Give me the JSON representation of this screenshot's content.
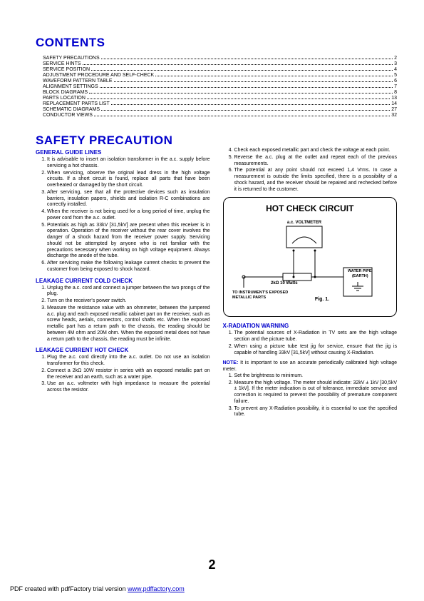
{
  "contents_heading": "CONTENTS",
  "toc": [
    {
      "label": "SAFETY PRECAUTIONS",
      "page": "2"
    },
    {
      "label": "SERVICE HINTS",
      "page": "3"
    },
    {
      "label": "SERVICE POSITION",
      "page": "4"
    },
    {
      "label": "ADJUSTMENT PROCEDURE AND SELF-CHECK",
      "page": "5"
    },
    {
      "label": "WAVEFORM PATTERN TABLE",
      "page": "6"
    },
    {
      "label": "ALIGNMENT SETTINGS",
      "page": "7"
    },
    {
      "label": "BLOCK DIAGRAMS",
      "page": "8"
    },
    {
      "label": "PARTS LOCATION",
      "page": "13"
    },
    {
      "label": "REPLACEMENT PARTS LIST",
      "page": "14"
    },
    {
      "label": "SCHEMATIC DIAGRAMS",
      "page": "27"
    },
    {
      "label": "CONDUCTOR VIEWS",
      "page": "32"
    }
  ],
  "safety_heading": "SAFETY PRECAUTION",
  "general_heading": "GENERAL GUIDE LINES",
  "general_left": [
    "It is advisable to insert an isolation transformer in the a.c. supply before servicing a hot chassis.",
    "When servicing, observe the original lead dress in the high voltage circuits. If a short circuit is found, replace all parts that have been overheated or damaged by the short circuit.",
    "After servicing, see that all the protective devices such as insulation barriers, insulation papers, shields and isolation R-C combinations are correctly installed.",
    "When the receiver is not being used for a long period of time, unplug the power cord from the a.c. outlet.",
    "Potentials as high as 33kV [31,5kV] are present when this receiver is in operation. Operation of the receiver without the rear cover involves the danger of a shock hazard from the receiver power supply. Servicing should not be attempted by anyone who is not familiar with the precautions necessary when working on high voltage equipment. Always discharge the anode of the tube.",
    "After servicing make the following leakage current checks to prevent the customer from being exposed to shock hazard."
  ],
  "cold_heading": "LEAKAGE CURRENT COLD CHECK",
  "cold_items": [
    "Unplug the a.c. cord and connect a jumper between the two prongs of the plug.",
    "Turn on the receiver's power switch.",
    "Measure the resistance value with an ohmmeter, between the jumpered a.c. plug and each exposed metallic cabinet part on the receiver, such as screw heads, aerials, connectors, control shafts etc. When the exposed metallic part has a return path to the chassis, the reading should be between 4M ohm and 20M ohm. When the exposed metal does not have a return path to the chassis, the reading must be infinite."
  ],
  "hot_heading": "LEAKAGE CURRENT HOT CHECK",
  "hot_items": [
    "Plug the a.c. cord directly into the a.c. outlet. Do not use an isolation transformer for this check.",
    "Connect a 2kΩ 10W resistor in series with an exposed metallic part on the receiver and an earth, such as a water pipe.",
    "Use an a.c. voltmeter with high impedance to measure the potential across the resistor."
  ],
  "general_right": [
    "Check each exposed metallic part and check the voltage at each point.",
    "Reverse the a.c. plug at the outlet and repeat each of the previous measurements.",
    "The potential at any point should not exceed 1,4 Vrms. In case a measurement is outside the limits specified, there is a possibility of a shock hazard, and the receiver should be repaired and rechecked before it is returned to the customer."
  ],
  "diagram": {
    "title": "HOT CHECK CIRCUIT",
    "voltmeter": "a.c. VOLTMETER",
    "resistor": "2kΩ 10 Watts",
    "earth": "WATER PIPE (EARTH)",
    "instrument": "TO INSTRUMENT'S EXPOSED METALLIC PARTS",
    "fig": "Fig. 1."
  },
  "xrad_heading": "X-RADIATION WARNING",
  "xrad_items": [
    "The potential sources of X-Radiation in TV sets are the high voltage section and the picture tube.",
    "When using a picture tube test jig for service, ensure that the jig is capable of handling 33kV [31,5kV] without causing X-Radiation."
  ],
  "note_label": "NOTE:",
  "note_text": " It is important to use an accurate periodically calibrated high voltage meter.",
  "note_items": [
    "Set the brightness to minimum.",
    "Measure the high voltage. The meter should indicate:      32kV ± 1kV   [30,5kV ± 1kV]. If the meter indication is out of tolerance, immediate service and correction is required to prevent the possibility of premature component failure.",
    "To prevent any X-Radiation possibility, it is essential to use the specified tube."
  ],
  "pagenum": "2",
  "footer_text": "PDF created with pdfFactory trial version ",
  "footer_link": "www.pdffactory.com",
  "colors": {
    "heading": "#0000cc"
  }
}
